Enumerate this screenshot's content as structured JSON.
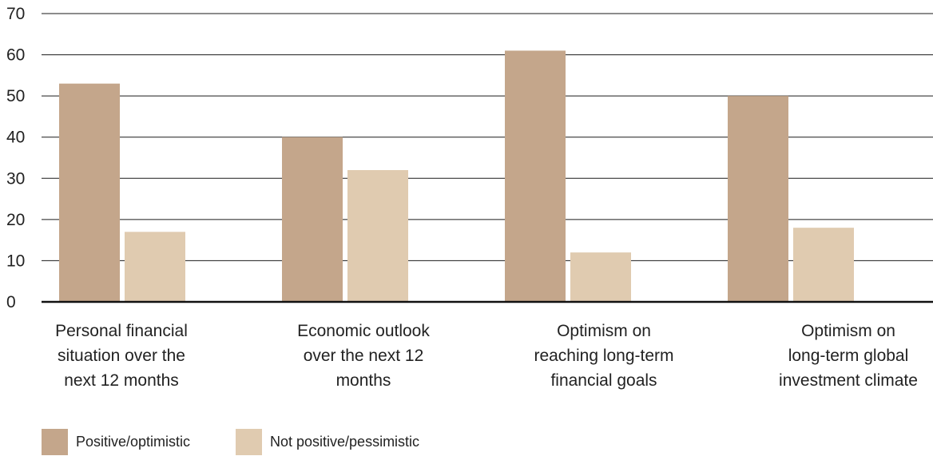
{
  "chart_data": {
    "type": "bar",
    "title": "",
    "xlabel": "",
    "ylabel": "",
    "ylim": [
      0,
      70
    ],
    "yticks": [
      0,
      10,
      20,
      30,
      40,
      50,
      60,
      70
    ],
    "grid": true,
    "legend_position": "bottom-left",
    "categories": [
      "Personal financial situation over the next 12 months",
      "Economic outlook over the next 12 months",
      "Optimism on reaching long-term financial goals",
      "Optimism on long-term global investment climate"
    ],
    "category_lines": [
      [
        "Personal financial",
        "situation over the",
        "next 12 months"
      ],
      [
        "Economic outlook",
        "over the next 12",
        "months"
      ],
      [
        "Optimism on",
        "reaching long-term",
        "financial goals"
      ],
      [
        "Optimism on",
        "long-term global",
        "investment climate"
      ]
    ],
    "series": [
      {
        "name": "Positive/optimistic",
        "color": "#c4a68b",
        "values": [
          53,
          40,
          61,
          50
        ]
      },
      {
        "name": "Not positive/pessimistic",
        "color": "#e0cbb0",
        "values": [
          17,
          32,
          12,
          18
        ]
      }
    ]
  }
}
